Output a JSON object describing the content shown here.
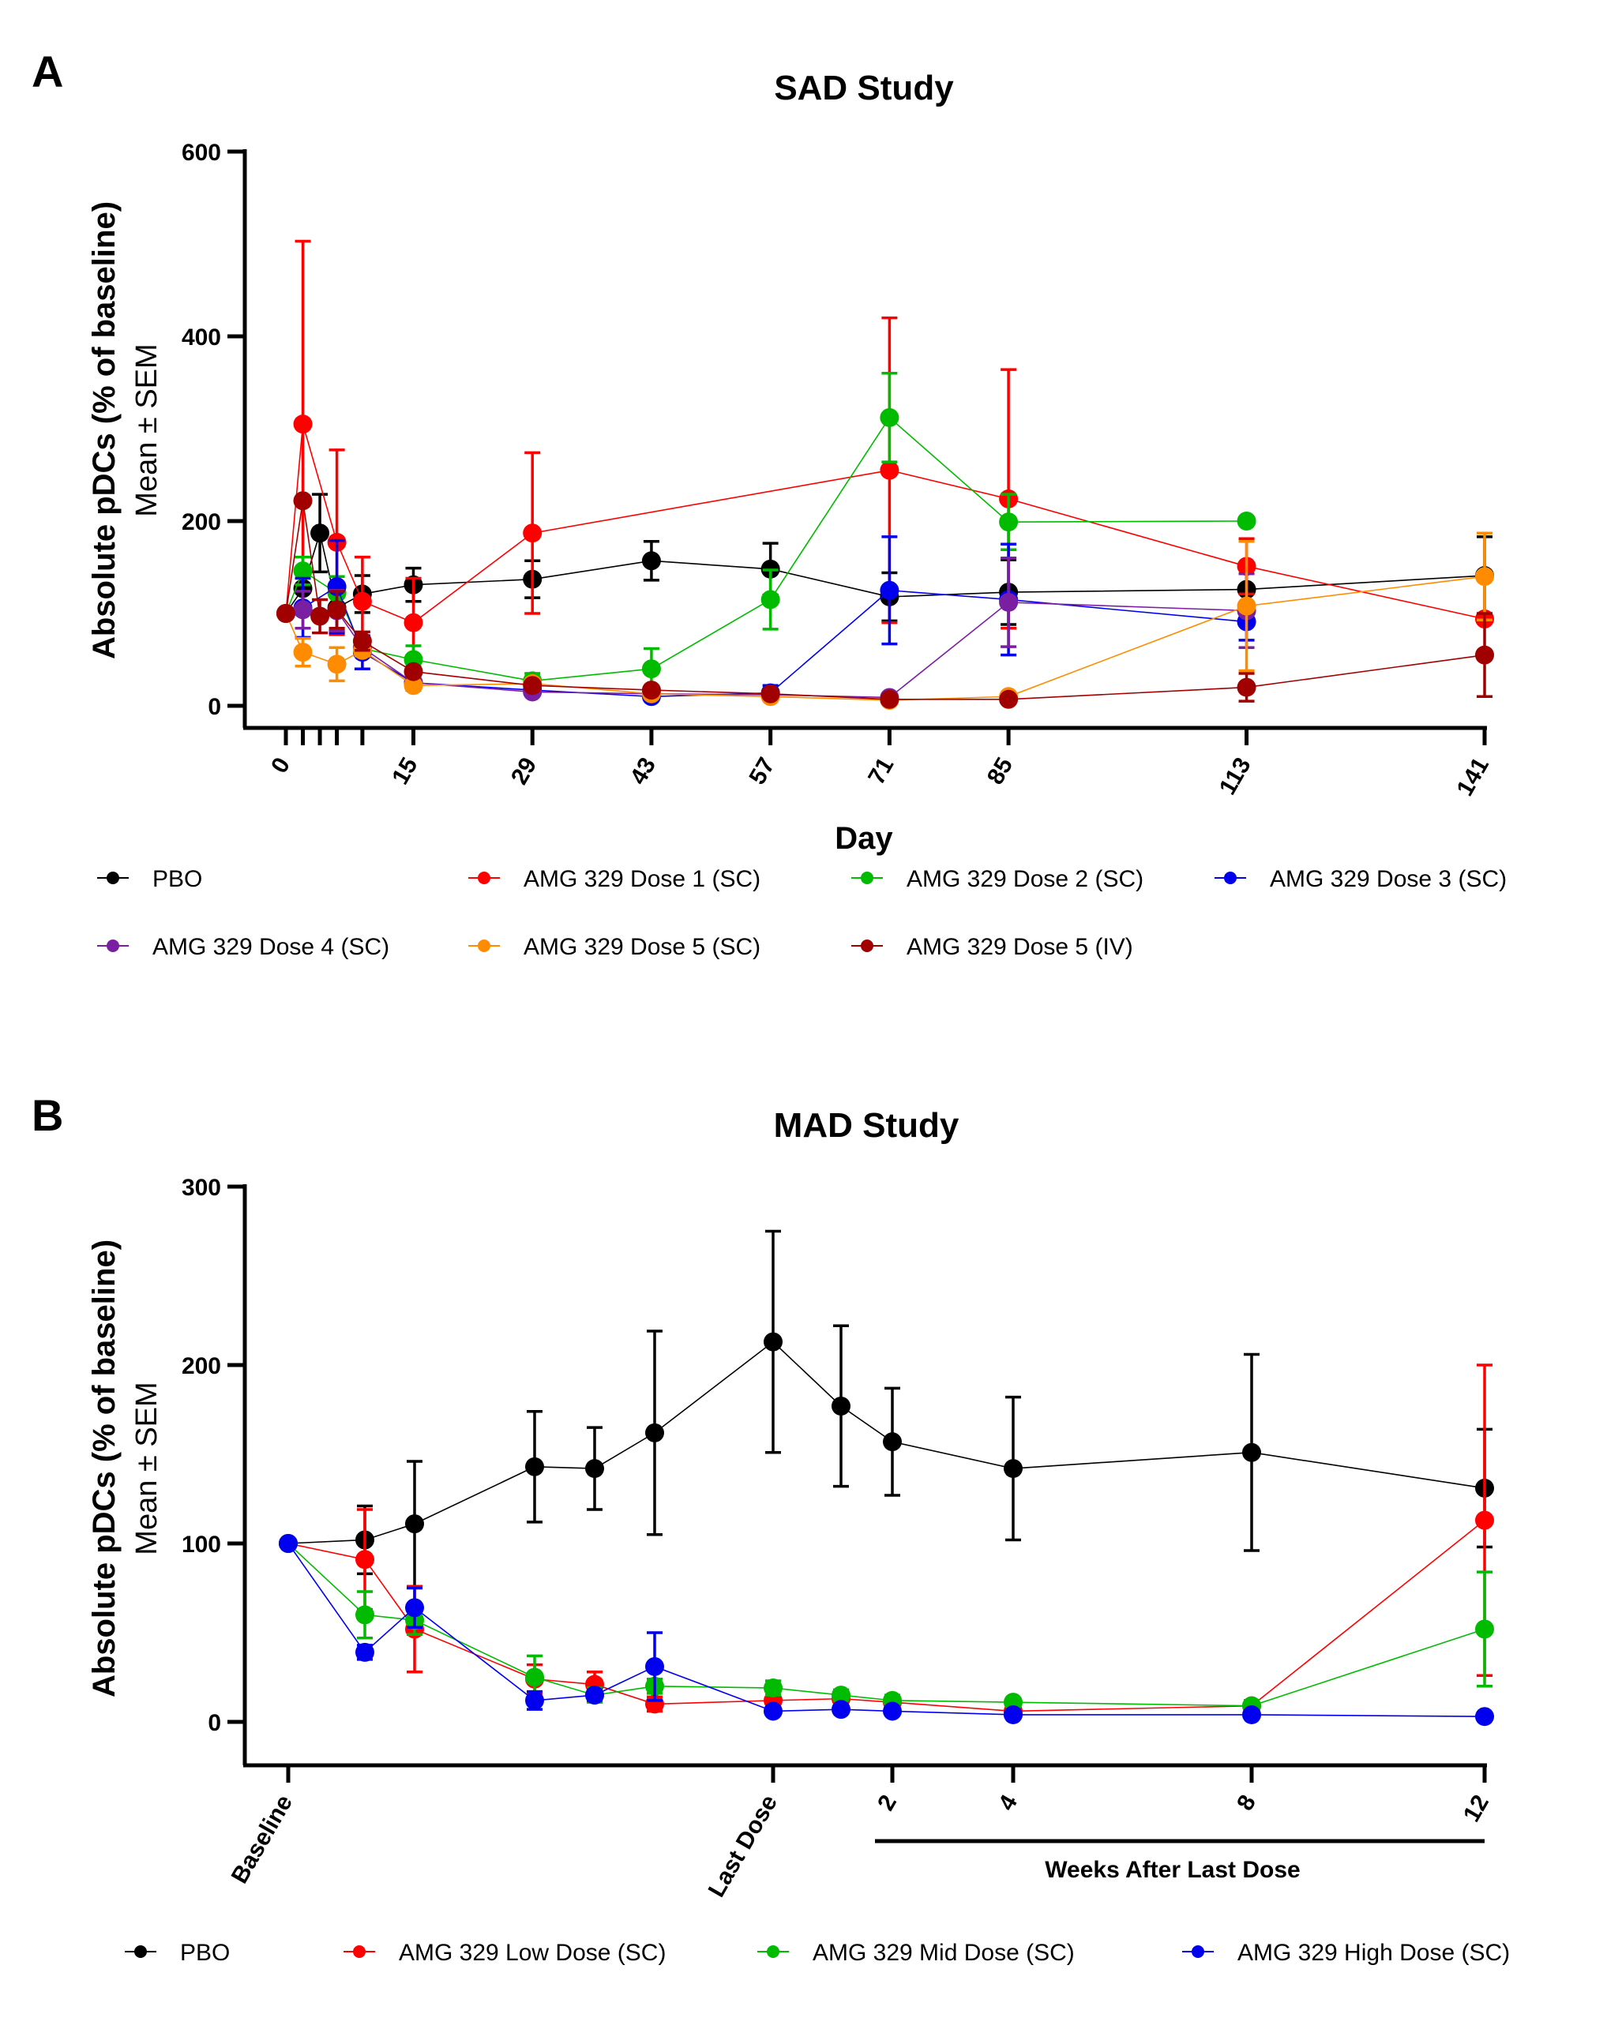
{
  "chart_data": [
    {
      "panel": "A",
      "type": "line",
      "title": "SAD Study",
      "xlabel": "Day",
      "ylabel": "Absolute pDCs (% of baseline)",
      "ylabel_sub": "Mean ± SEM",
      "xlim": [
        0,
        141
      ],
      "ylim": [
        0,
        600
      ],
      "yticks": [
        0,
        200,
        400,
        600
      ],
      "xticks": [
        0,
        2,
        4,
        6,
        9,
        15,
        29,
        43,
        57,
        71,
        85,
        113,
        141
      ],
      "xtick_labels": [
        "0",
        "",
        "",
        "",
        "",
        "15",
        "29",
        "43",
        "57",
        "71",
        "85",
        "113",
        "141"
      ],
      "legend_position": "bottom",
      "series": [
        {
          "name": "PBO",
          "color": "#000000",
          "x": [
            0,
            2,
            4,
            6,
            9,
            15,
            29,
            43,
            57,
            71,
            85,
            113,
            141
          ],
          "y": [
            100,
            127,
            187,
            106,
            121,
            131,
            137,
            157,
            148,
            118,
            123,
            126,
            141
          ],
          "err": [
            0,
            18,
            42,
            25,
            20,
            18,
            20,
            21,
            28,
            26,
            35,
            23,
            42
          ]
        },
        {
          "name": "AMG 329 Dose 1 (SC)",
          "color": "#ff0000",
          "x": [
            0,
            2,
            6,
            9,
            15,
            29,
            71,
            85,
            113,
            141
          ],
          "y": [
            100,
            305,
            177,
            113,
            90,
            187,
            255,
            224,
            151,
            94
          ],
          "err": [
            0,
            198,
            100,
            48,
            48,
            87,
            165,
            140,
            30,
            0
          ]
        },
        {
          "name": "AMG 329 Dose 2 (SC)",
          "color": "#00bb00",
          "x": [
            0,
            2,
            6,
            9,
            15,
            29,
            43,
            57,
            71,
            85,
            113
          ],
          "y": [
            100,
            146,
            122,
            62,
            50,
            27,
            40,
            115,
            312,
            199,
            200
          ],
          "err": [
            0,
            15,
            18,
            6,
            15,
            8,
            22,
            32,
            48,
            30,
            0
          ]
        },
        {
          "name": "AMG 329 Dose 3 (SC)",
          "color": "#0000ee",
          "x": [
            0,
            2,
            6,
            9,
            15,
            29,
            43,
            57,
            71,
            85,
            113
          ],
          "y": [
            100,
            106,
            129,
            58,
            25,
            17,
            10,
            14,
            125,
            115,
            91
          ],
          "err": [
            0,
            32,
            50,
            18,
            8,
            4,
            4,
            8,
            58,
            60,
            20
          ]
        },
        {
          "name": "AMG 329 Dose 4 (SC)",
          "color": "#7a1fa2",
          "x": [
            0,
            2,
            6,
            9,
            15,
            29,
            43,
            57,
            71,
            85,
            113
          ],
          "y": [
            100,
            104,
            103,
            63,
            25,
            15,
            13,
            12,
            9,
            112,
            103
          ],
          "err": [
            0,
            20,
            22,
            8,
            5,
            3,
            3,
            3,
            3,
            48,
            40
          ]
        },
        {
          "name": "AMG 329 Dose 5 (SC)",
          "color": "#ff8c00",
          "x": [
            0,
            2,
            6,
            9,
            15,
            29,
            43,
            57,
            71,
            85,
            113,
            141
          ],
          "y": [
            100,
            58,
            45,
            60,
            22,
            24,
            13,
            10,
            6,
            10,
            108,
            140
          ],
          "err": [
            0,
            15,
            18,
            6,
            3,
            3,
            3,
            3,
            2,
            2,
            70,
            47
          ]
        },
        {
          "name": "AMG 329 Dose 5 (IV)",
          "color": "#a00000",
          "x": [
            0,
            2,
            4,
            6,
            9,
            15,
            29,
            43,
            57,
            71,
            85,
            113,
            141
          ],
          "y": [
            100,
            222,
            97,
            104,
            70,
            37,
            22,
            17,
            13,
            7,
            7,
            20,
            55
          ],
          "err": [
            0,
            0,
            18,
            20,
            10,
            5,
            3,
            3,
            3,
            2,
            2,
            15,
            45
          ]
        }
      ]
    },
    {
      "panel": "B",
      "type": "line",
      "title": "MAD Study",
      "xlabel": "",
      "ylabel": "Absolute pDCs (% of baseline)",
      "ylabel_sub": "Mean ± SEM",
      "ylim": [
        0,
        300
      ],
      "yticks": [
        0,
        100,
        200,
        300
      ],
      "x_positions": [
        0,
        1,
        2,
        3,
        4,
        5,
        6,
        7,
        8,
        9,
        10,
        11
      ],
      "xtick_positions": [
        0,
        6,
        8,
        10,
        12,
        16
      ],
      "xtick_labels": [
        "Baseline",
        "Last Dose",
        "2",
        "4",
        "8",
        "12"
      ],
      "weeks_bracket_label": "Weeks After Last Dose",
      "legend_position": "bottom",
      "series": [
        {
          "name": "PBO",
          "color": "#000000",
          "x": [
            0,
            1.3,
            2.1,
            4.1,
            5.0,
            6.0,
            8.0,
            9.0,
            10.0,
            12.0,
            16.0,
            20.0
          ],
          "y": [
            100,
            102,
            111,
            143,
            142,
            162,
            213,
            177,
            157,
            142,
            151,
            131
          ],
          "err": [
            0,
            19,
            35,
            31,
            23,
            57,
            62,
            45,
            30,
            40,
            55,
            33
          ]
        },
        {
          "name": "AMG 329 Low Dose (SC)",
          "color": "#ff0000",
          "x": [
            0,
            1.3,
            2.1,
            4.1,
            5.0,
            6.0,
            8.0,
            9.0,
            10.0,
            12.0,
            16.0,
            20.0
          ],
          "y": [
            100,
            91,
            52,
            24,
            21,
            10,
            12,
            13,
            11,
            6,
            9,
            113
          ],
          "err": [
            0,
            28,
            24,
            8,
            7,
            4,
            3,
            3,
            3,
            2,
            3,
            87
          ]
        },
        {
          "name": "AMG 329 Mid Dose (SC)",
          "color": "#00bb00",
          "x": [
            0,
            1.3,
            2.1,
            4.1,
            5.0,
            6.0,
            8.0,
            9.0,
            10.0,
            12.0,
            16.0,
            20.0
          ],
          "y": [
            100,
            60,
            57,
            25,
            15,
            20,
            19,
            15,
            12,
            11,
            9,
            52
          ],
          "err": [
            0,
            13,
            8,
            12,
            4,
            4,
            4,
            3,
            3,
            2,
            3,
            32
          ]
        },
        {
          "name": "AMG 329 High Dose (SC)",
          "color": "#0000ee",
          "x": [
            0,
            1.3,
            2.1,
            4.1,
            5.0,
            6.0,
            8.0,
            9.0,
            10.0,
            12.0,
            16.0,
            20.0
          ],
          "y": [
            100,
            39,
            64,
            12,
            15,
            31,
            6,
            7,
            6,
            4,
            4,
            3
          ],
          "err": [
            0,
            4,
            11,
            5,
            3,
            19,
            2,
            2,
            2,
            1,
            1,
            1
          ]
        }
      ]
    }
  ],
  "panels": {
    "a": {
      "letter": "A",
      "title": "SAD Study",
      "ylabel": "Absolute pDCs (% of baseline)",
      "ylabel_sub": "Mean ± SEM",
      "xlabel": "Day"
    },
    "b": {
      "letter": "B",
      "title": "MAD Study",
      "ylabel": "Absolute pDCs (% of baseline)",
      "ylabel_sub": "Mean ± SEM",
      "weeks_label": "Weeks After Last Dose"
    }
  }
}
